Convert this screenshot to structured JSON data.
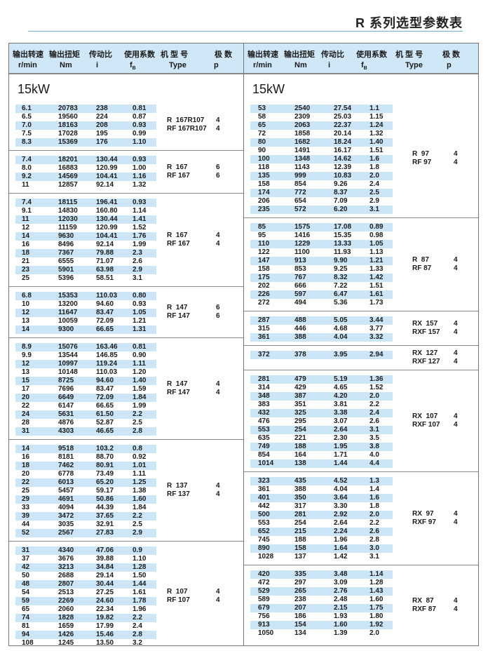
{
  "title": "R 系列选型参数表",
  "header": {
    "cols_zh": [
      "输出转速",
      "输出扭矩",
      "传动比",
      "使用系数",
      "机 型 号",
      "极 数"
    ],
    "cols_unit": [
      "r/min",
      "Nm",
      "i",
      "f",
      "Type",
      "p"
    ],
    "fs_sub": "B"
  },
  "power": "15kW",
  "colors": {
    "header_bg": "#cfe7f7",
    "row_band": "#cce6f7",
    "rule": "#6fb3d8"
  },
  "left_sections": [
    {
      "types": [
        "R  167R107",
        "RF 167R107"
      ],
      "poles": [
        "4",
        "4"
      ],
      "rows": [
        [
          "6.1",
          "20783",
          "238",
          "0.81"
        ],
        [
          "6.5",
          "19560",
          "224",
          "0.87"
        ],
        [
          "7.0",
          "18163",
          "208",
          "0.93"
        ],
        [
          "7.5",
          "17028",
          "195",
          "0.99"
        ],
        [
          "8.3",
          "15369",
          "176",
          "1.10"
        ]
      ]
    },
    {
      "types": [
        "R  167",
        "RF 167"
      ],
      "poles": [
        "6",
        "6"
      ],
      "rows": [
        [
          "7.4",
          "18201",
          "130.44",
          "0.93"
        ],
        [
          "8.0",
          "16883",
          "120.99",
          "1.00"
        ],
        [
          "9.2",
          "14569",
          "104.41",
          "1.16"
        ],
        [
          "11",
          "12857",
          "92.14",
          "1.32"
        ]
      ]
    },
    {
      "types": [
        "R  167",
        "RF 167"
      ],
      "poles": [
        "4",
        "4"
      ],
      "rows": [
        [
          "7.4",
          "18115",
          "196.41",
          "0.93"
        ],
        [
          "9.1",
          "14830",
          "160.80",
          "1.14"
        ],
        [
          "11",
          "12030",
          "130.44",
          "1.41"
        ],
        [
          "12",
          "11159",
          "120.99",
          "1.52"
        ],
        [
          "14",
          "9630",
          "104.41",
          "1.76"
        ],
        [
          "16",
          "8496",
          "92.14",
          "1.99"
        ],
        [
          "18",
          "7367",
          "79.88",
          "2.3"
        ],
        [
          "21",
          "6555",
          "71.07",
          "2.6"
        ],
        [
          "23",
          "5901",
          "63.98",
          "2.9"
        ],
        [
          "25",
          "5396",
          "58.51",
          "3.1"
        ]
      ]
    },
    {
      "types": [
        "R  147",
        "RF 147"
      ],
      "poles": [
        "6",
        "6"
      ],
      "rows": [
        [
          "6.8",
          "15353",
          "110.03",
          "0.80"
        ],
        [
          "10",
          "13200",
          "94.60",
          "0.93"
        ],
        [
          "12",
          "11647",
          "83.47",
          "1.05"
        ],
        [
          "13",
          "10059",
          "72.09",
          "1.21"
        ],
        [
          "14",
          "9300",
          "66.65",
          "1.31"
        ]
      ]
    },
    {
      "types": [
        "R  147",
        "RF 147"
      ],
      "poles": [
        "4",
        "4"
      ],
      "rows": [
        [
          "8.9",
          "15076",
          "163.46",
          "0.81"
        ],
        [
          "9.9",
          "13544",
          "146.85",
          "0.90"
        ],
        [
          "12",
          "10997",
          "119.24",
          "1.11"
        ],
        [
          "13",
          "10148",
          "110.03",
          "1.20"
        ],
        [
          "15",
          "8725",
          "94.60",
          "1.40"
        ],
        [
          "17",
          "7696",
          "83.47",
          "1.59"
        ],
        [
          "20",
          "6649",
          "72.09",
          "1.84"
        ],
        [
          "22",
          "6147",
          "66.65",
          "1.99"
        ],
        [
          "24",
          "5631",
          "61.50",
          "2.2"
        ],
        [
          "28",
          "4876",
          "52.87",
          "2.5"
        ],
        [
          "31",
          "4303",
          "46.65",
          "2.8"
        ]
      ]
    },
    {
      "types": [
        "R  137",
        "RF 137"
      ],
      "poles": [
        "4",
        "4"
      ],
      "rows": [
        [
          "14",
          "9518",
          "103.2",
          "0.8"
        ],
        [
          "16",
          "8181",
          "88.70",
          "0.92"
        ],
        [
          "18",
          "7462",
          "80.91",
          "1.01"
        ],
        [
          "20",
          "6778",
          "73.49",
          "1.11"
        ],
        [
          "22",
          "6013",
          "65.20",
          "1.25"
        ],
        [
          "25",
          "5457",
          "59.17",
          "1.38"
        ],
        [
          "29",
          "4691",
          "50.86",
          "1.60"
        ],
        [
          "33",
          "4094",
          "44.39",
          "1.84"
        ],
        [
          "39",
          "3472",
          "37.65",
          "2.2"
        ],
        [
          "44",
          "3035",
          "32.91",
          "2.5"
        ],
        [
          "52",
          "2567",
          "27.83",
          "2.9"
        ]
      ]
    },
    {
      "types": [
        "R  107",
        "RF 107"
      ],
      "poles": [
        "4",
        "4"
      ],
      "rows": [
        [
          "31",
          "4340",
          "47.06",
          "0.9"
        ],
        [
          "37",
          "3676",
          "39.88",
          "1.10"
        ],
        [
          "42",
          "3213",
          "34.84",
          "1.28"
        ],
        [
          "50",
          "2688",
          "29.14",
          "1.50"
        ],
        [
          "48",
          "2807",
          "30.44",
          "1.44"
        ],
        [
          "54",
          "2513",
          "27.25",
          "1.61"
        ],
        [
          "59",
          "2269",
          "24.60",
          "1.78"
        ],
        [
          "65",
          "2060",
          "22.34",
          "1.96"
        ],
        [
          "74",
          "1828",
          "19.82",
          "2.2"
        ],
        [
          "81",
          "1659",
          "17.99",
          "2.4"
        ],
        [
          "94",
          "1426",
          "15.46",
          "2.8"
        ],
        [
          "108",
          "1245",
          "13.50",
          "3.2"
        ]
      ]
    }
  ],
  "right_sections": [
    {
      "types": [
        "R  97",
        "RF 97"
      ],
      "poles": [
        "4",
        "4"
      ],
      "rows": [
        [
          "53",
          "2540",
          "27.54",
          "1.1"
        ],
        [
          "58",
          "2309",
          "25.03",
          "1.15"
        ],
        [
          "65",
          "2063",
          "22.37",
          "1.24"
        ],
        [
          "72",
          "1858",
          "20.14",
          "1.32"
        ],
        [
          "80",
          "1682",
          "18.24",
          "1.40"
        ],
        [
          "90",
          "1491",
          "16.17",
          "1.51"
        ],
        [
          "100",
          "1348",
          "14.62",
          "1.6"
        ],
        [
          "118",
          "1143",
          "12.39",
          "1.8"
        ],
        [
          "135",
          "999",
          "10.83",
          "2.0"
        ],
        [
          "158",
          "854",
          "9.26",
          "2.4"
        ],
        [
          "174",
          "772",
          "8.37",
          "2.5"
        ],
        [
          "206",
          "654",
          "7.09",
          "2.9"
        ],
        [
          "235",
          "572",
          "6.20",
          "3.1"
        ]
      ]
    },
    {
      "types": [
        "R  87",
        "RF 87"
      ],
      "poles": [
        "4",
        "4"
      ],
      "rows": [
        [
          "85",
          "1575",
          "17.08",
          "0.89"
        ],
        [
          "95",
          "1416",
          "15.35",
          "0.98"
        ],
        [
          "110",
          "1229",
          "13.33",
          "1.05"
        ],
        [
          "122",
          "1100",
          "11.93",
          "1.13"
        ],
        [
          "147",
          "913",
          "9.90",
          "1.21"
        ],
        [
          "158",
          "853",
          "9.25",
          "1.33"
        ],
        [
          "175",
          "767",
          "8.32",
          "1.42"
        ],
        [
          "202",
          "666",
          "7.22",
          "1.51"
        ],
        [
          "226",
          "597",
          "6.47",
          "1.61"
        ],
        [
          "272",
          "494",
          "5.36",
          "1.73"
        ]
      ]
    },
    {
      "types": [
        "RX  157",
        "RXF 157"
      ],
      "poles": [
        "4",
        "4"
      ],
      "rows": [
        [
          "287",
          "488",
          "5.05",
          "3.44"
        ],
        [
          "315",
          "446",
          "4.68",
          "3.77"
        ],
        [
          "361",
          "388",
          "4.04",
          "3.32"
        ]
      ]
    },
    {
      "types": [
        "RX  127",
        "RXF 127"
      ],
      "poles": [
        "4",
        "4"
      ],
      "rows": [
        [
          "372",
          "378",
          "3.95",
          "2.94"
        ]
      ]
    },
    {
      "types": [
        "RX  107",
        "RXF 107"
      ],
      "poles": [
        "4",
        "4"
      ],
      "rows": [
        [
          "281",
          "479",
          "5.19",
          "1.36"
        ],
        [
          "314",
          "429",
          "4.65",
          "1.52"
        ],
        [
          "348",
          "387",
          "4.20",
          "2.0"
        ],
        [
          "383",
          "351",
          "3.81",
          "2.2"
        ],
        [
          "432",
          "325",
          "3.38",
          "2.4"
        ],
        [
          "476",
          "295",
          "3.07",
          "2.6"
        ],
        [
          "553",
          "254",
          "2.64",
          "3.1"
        ],
        [
          "635",
          "221",
          "2.30",
          "3.5"
        ],
        [
          "749",
          "188",
          "1.95",
          "3.8"
        ],
        [
          "854",
          "164",
          "1.71",
          "4.0"
        ],
        [
          "1014",
          "138",
          "1.44",
          "4.4"
        ]
      ]
    },
    {
      "types": [
        "RX  97",
        "RXF 97"
      ],
      "poles": [
        "4",
        "4"
      ],
      "rows": [
        [
          "323",
          "435",
          "4.52",
          "1.3"
        ],
        [
          "361",
          "388",
          "4.04",
          "1.4"
        ],
        [
          "401",
          "350",
          "3.64",
          "1.6"
        ],
        [
          "442",
          "317",
          "3.30",
          "1.8"
        ],
        [
          "500",
          "281",
          "2.92",
          "2.0"
        ],
        [
          "553",
          "254",
          "2.64",
          "2.2"
        ],
        [
          "652",
          "215",
          "2.24",
          "2.6"
        ],
        [
          "745",
          "188",
          "1.96",
          "2.8"
        ],
        [
          "890",
          "158",
          "1.64",
          "3.0"
        ],
        [
          "1028",
          "137",
          "1.42",
          "3.1"
        ]
      ]
    },
    {
      "types": [
        "RX  87",
        "RXF 87"
      ],
      "poles": [
        "4",
        "4"
      ],
      "rows": [
        [
          "420",
          "335",
          "3.48",
          "1.14"
        ],
        [
          "472",
          "297",
          "3.09",
          "1.28"
        ],
        [
          "529",
          "265",
          "2.76",
          "1.43"
        ],
        [
          "589",
          "238",
          "2.48",
          "1.60"
        ],
        [
          "679",
          "207",
          "2.15",
          "1.75"
        ],
        [
          "756",
          "186",
          "1.93",
          "1.80"
        ],
        [
          "913",
          "154",
          "1.60",
          "1.92"
        ],
        [
          "1050",
          "134",
          "1.39",
          "2.0"
        ]
      ]
    }
  ]
}
